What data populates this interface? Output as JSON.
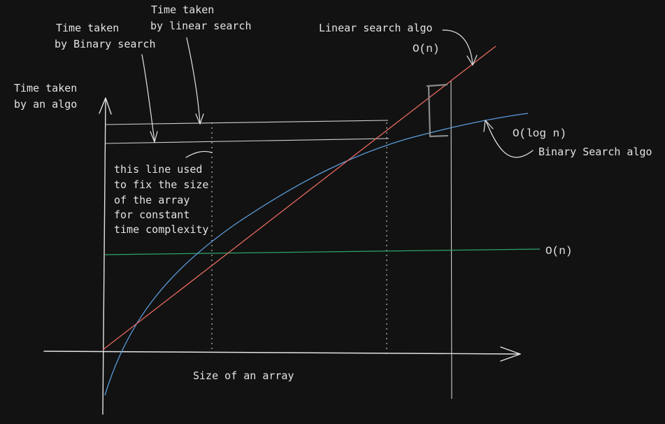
{
  "colors": {
    "background": "#121212",
    "axis": "#e3e3e3",
    "linear_curve": "#e8685f",
    "binary_curve": "#5b9bd9",
    "constant_line": "#2fa36b",
    "guide": "#cfcfcf",
    "highlight_bracket": "#8a8a8a"
  },
  "labels": {
    "y_axis_line1": "Time taken",
    "y_axis_line2": "by an algo",
    "x_axis": "Size of an array",
    "binary_time_line1": "Time taken",
    "binary_time_line2": "by Binary search",
    "linear_time_line1": "Time taken",
    "linear_time_line2": "by linear search",
    "linear_algo": "Linear search algo",
    "linear_complexity": "O(n)",
    "binary_complexity": "O(log n)",
    "binary_algo": "Binary Search algo",
    "constant_complexity": "O(n)",
    "note_line1": "this line used",
    "note_line2": "to fix the size",
    "note_line3": "of the array",
    "note_line4": "for constant",
    "note_line5": "time complexity"
  }
}
